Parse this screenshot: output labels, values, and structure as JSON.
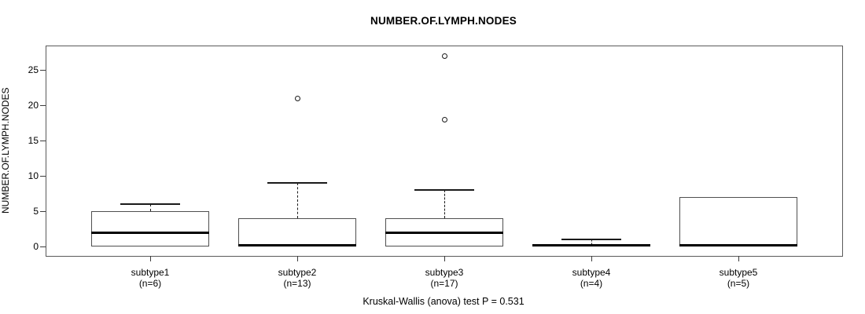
{
  "chart_data": {
    "type": "boxplot",
    "title": "NUMBER.OF.LYMPH.NODES",
    "ylabel": "NUMBER.OF.LYMPH.NODES",
    "xlabel": "",
    "caption": "Kruskal-Wallis (anova) test P = 0.531",
    "ylim": [
      0,
      27
    ],
    "yticks": [
      0,
      5,
      10,
      15,
      20,
      25
    ],
    "grid": false,
    "legend": "none",
    "groups": [
      {
        "label": "subtype1",
        "sublabel": "(n=6)",
        "n": 6,
        "whisker_low": 0,
        "q1": 0,
        "median": 2,
        "q3": 5,
        "whisker_high": 6,
        "outliers": []
      },
      {
        "label": "subtype2",
        "sublabel": "(n=13)",
        "n": 13,
        "whisker_low": 0,
        "q1": 0,
        "median": 0,
        "q3": 4,
        "whisker_high": 9,
        "outliers": [
          21
        ]
      },
      {
        "label": "subtype3",
        "sublabel": "(n=17)",
        "n": 17,
        "whisker_low": 0,
        "q1": 0,
        "median": 2,
        "q3": 4,
        "whisker_high": 8,
        "outliers": [
          18,
          27
        ]
      },
      {
        "label": "subtype4",
        "sublabel": "(n=4)",
        "n": 4,
        "whisker_low": 0,
        "q1": 0,
        "median": 0,
        "q3": 0.25,
        "whisker_high": 1,
        "outliers": []
      },
      {
        "label": "subtype5",
        "sublabel": "(n=5)",
        "n": 5,
        "whisker_low": 0,
        "q1": 0,
        "median": 0,
        "q3": 7,
        "whisker_high": 7,
        "outliers": []
      }
    ],
    "colors": {
      "background": "#ffffff",
      "frame": "#5a5a5a",
      "box_border": "#4f4f4f",
      "median": "#000000",
      "text": "#000000"
    }
  }
}
